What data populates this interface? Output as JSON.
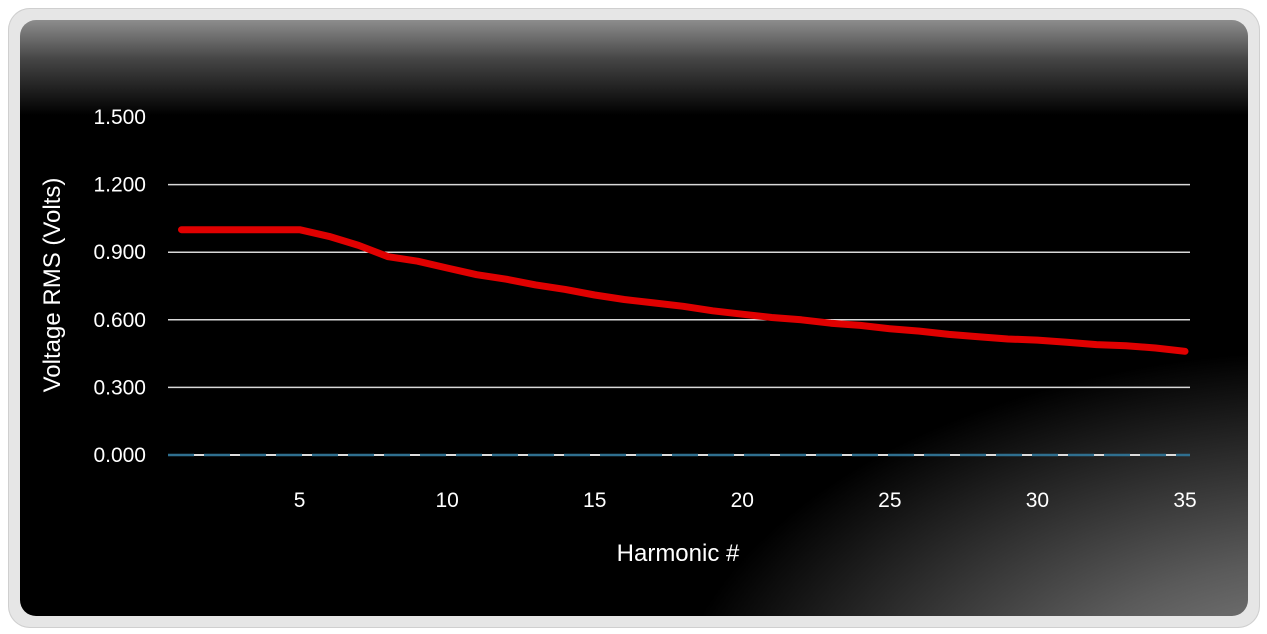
{
  "chart_data": {
    "type": "line",
    "xlabel": "Harmonic #",
    "ylabel": "Voltage RMS (Volts)",
    "xlim": [
      0,
      35
    ],
    "ylim": [
      0,
      1.5
    ],
    "xticks": [
      "5",
      "10",
      "15",
      "20",
      "25",
      "30",
      "35"
    ],
    "yticks": [
      "0.000",
      "0.300",
      "0.600",
      "0.900",
      "1.200",
      "1.500"
    ],
    "grid": true,
    "series": [
      {
        "color": "#e00000",
        "x": [
          1,
          2,
          3,
          4,
          5,
          6,
          7,
          8,
          9,
          10,
          11,
          12,
          13,
          14,
          15,
          16,
          17,
          18,
          19,
          20,
          21,
          22,
          23,
          24,
          25,
          26,
          27,
          28,
          29,
          30,
          31,
          32,
          33,
          34,
          35
        ],
        "y": [
          1.0,
          1.0,
          1.0,
          1.0,
          1.0,
          0.97,
          0.93,
          0.88,
          0.86,
          0.83,
          0.8,
          0.78,
          0.755,
          0.735,
          0.71,
          0.69,
          0.675,
          0.66,
          0.64,
          0.625,
          0.61,
          0.6,
          0.585,
          0.575,
          0.56,
          0.55,
          0.535,
          0.525,
          0.515,
          0.51,
          0.5,
          0.49,
          0.485,
          0.475,
          0.46
        ]
      }
    ],
    "baseline": {
      "value": 0,
      "color": "#2f6f8f",
      "style": "dashed"
    }
  }
}
